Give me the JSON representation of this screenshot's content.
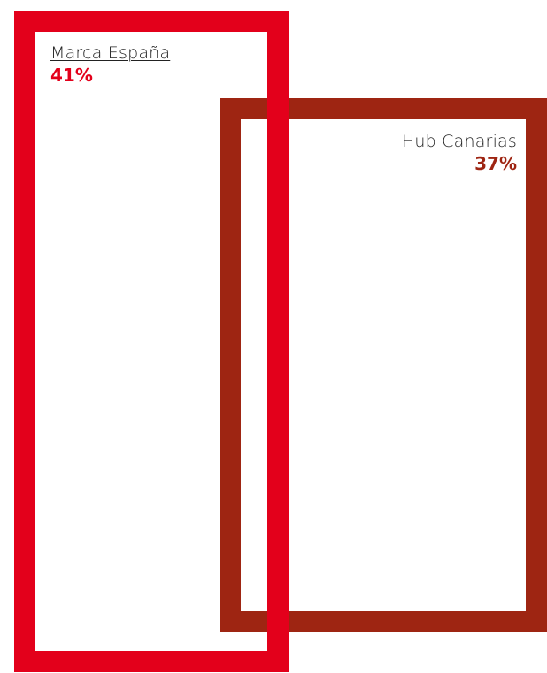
{
  "chart_data": {
    "type": "other",
    "title": "",
    "categories": [
      "Marca España",
      "Hub Canarias"
    ],
    "values": [
      41,
      37
    ],
    "value_labels": [
      "41%",
      "37%"
    ],
    "unit": "%",
    "colors": [
      "#e3001b",
      "#9e2512"
    ]
  },
  "items": [
    {
      "label": "Marca España",
      "value": "41%",
      "color": "#e3001b"
    },
    {
      "label": "Hub Canarias",
      "value": "37%",
      "color": "#9e2512"
    }
  ]
}
